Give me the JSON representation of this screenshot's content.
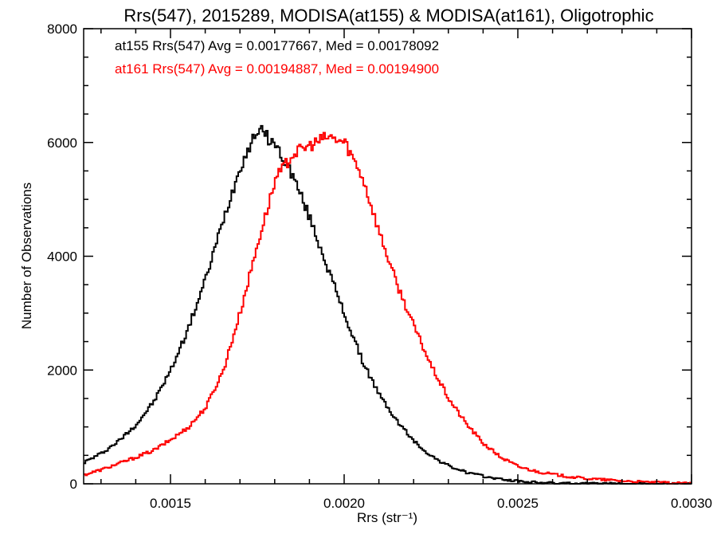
{
  "chart_data": {
    "type": "line",
    "title": "Rrs(547), 2015289, MODISA(at155) & MODISA(at161), Oligotrophic",
    "xlabel": "Rrs (str⁻¹)",
    "ylabel": "Number of Observations",
    "xlim": [
      0.00125,
      0.003
    ],
    "ylim": [
      0,
      8000
    ],
    "x_ticks": [
      0.0015,
      0.002,
      0.0025,
      0.003
    ],
    "x_tick_labels": [
      "0.0015",
      "0.0020",
      "0.0025",
      "0.0030"
    ],
    "y_ticks": [
      0,
      2000,
      4000,
      6000,
      8000
    ],
    "y_tick_labels": [
      "0",
      "2000",
      "4000",
      "6000",
      "8000"
    ],
    "grid": false,
    "legend_position": "top-left",
    "annotations": [
      {
        "text": "at155 Rrs(547) Avg = 0.00177667, Med = 0.00178092",
        "color": "#000000"
      },
      {
        "text": "at161 Rrs(547) Avg = 0.00194887, Med = 0.00194900",
        "color": "#ff0000"
      }
    ],
    "bin_width": 5e-06,
    "series": [
      {
        "color": "#000000",
        "style": "step",
        "x": [
          0.00125,
          0.0013,
          0.00135,
          0.0014,
          0.00145,
          0.0015,
          0.00155,
          0.0016,
          0.00165,
          0.0017,
          0.00175,
          0.0018,
          0.00185,
          0.0019,
          0.00195,
          0.002,
          0.00205,
          0.0021,
          0.00215,
          0.0022,
          0.00225,
          0.0023,
          0.00235,
          0.0024,
          0.00245,
          0.0025,
          0.00255,
          0.0026,
          0.00265,
          0.0027,
          0.00275,
          0.0028,
          0.00285,
          0.0029,
          0.00295,
          0.003
        ],
        "values": [
          380,
          540,
          760,
          1050,
          1450,
          2020,
          2750,
          3620,
          4650,
          5600,
          6250,
          5950,
          5420,
          4650,
          3800,
          2950,
          2160,
          1550,
          1100,
          740,
          480,
          310,
          200,
          130,
          80,
          45,
          25,
          12,
          6,
          3,
          2,
          0,
          0,
          0,
          0,
          0
        ]
      },
      {
        "color": "#ff0000",
        "style": "step",
        "x": [
          0.00125,
          0.0013,
          0.00135,
          0.0014,
          0.00145,
          0.0015,
          0.00155,
          0.0016,
          0.00165,
          0.0017,
          0.00175,
          0.0018,
          0.00185,
          0.0019,
          0.00195,
          0.002,
          0.00205,
          0.0021,
          0.00215,
          0.0022,
          0.00225,
          0.0023,
          0.00235,
          0.0024,
          0.00245,
          0.0025,
          0.00255,
          0.0026,
          0.00265,
          0.0027,
          0.00275,
          0.0028,
          0.00285,
          0.0029,
          0.00295,
          0.003
        ],
        "values": [
          160,
          250,
          360,
          470,
          590,
          780,
          1000,
          1350,
          2000,
          3050,
          4250,
          5350,
          5800,
          5950,
          6100,
          6000,
          5400,
          4400,
          3500,
          2750,
          2050,
          1480,
          1050,
          700,
          460,
          300,
          220,
          165,
          120,
          90,
          70,
          50,
          35,
          22,
          12,
          5
        ]
      }
    ]
  }
}
